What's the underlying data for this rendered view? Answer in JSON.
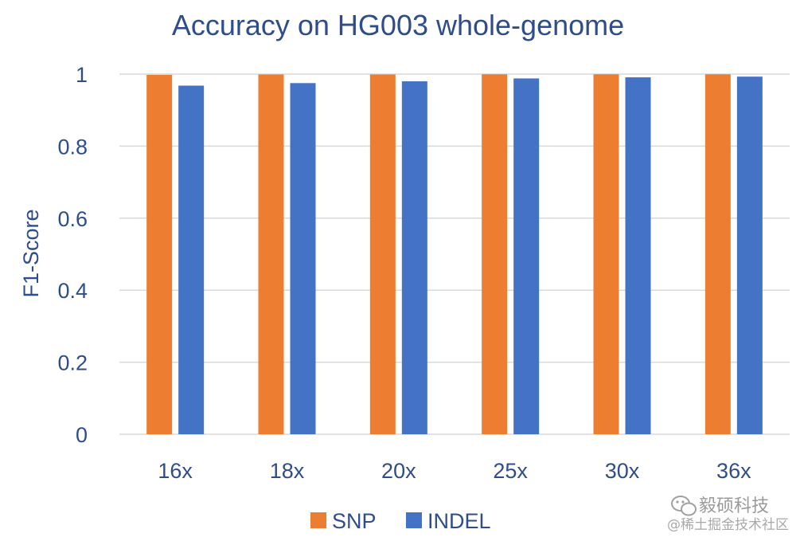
{
  "chart_data": {
    "type": "bar",
    "title": "Accuracy on HG003 whole-genome",
    "xlabel": "",
    "ylabel": "F1-Score",
    "ylim": [
      0,
      1
    ],
    "yticks": [
      0,
      0.2,
      0.4,
      0.6,
      0.8,
      1
    ],
    "ytick_labels": [
      "0",
      "0.2",
      "0.4",
      "0.6",
      "0.8",
      "1"
    ],
    "categories": [
      "16x",
      "18x",
      "20x",
      "25x",
      "30x",
      "36x"
    ],
    "series": [
      {
        "name": "SNP",
        "color": "#ed7d31",
        "values": [
          0.998,
          0.999,
          0.999,
          0.9995,
          0.9995,
          0.9995
        ]
      },
      {
        "name": "INDEL",
        "color": "#4472c4",
        "values": [
          0.968,
          0.975,
          0.98,
          0.988,
          0.991,
          0.993
        ]
      }
    ],
    "grid": true,
    "legend": "bottom"
  },
  "watermark": {
    "icon": "wechat-icon",
    "line1": "毅硕科技",
    "line2": "@稀土掘金技术社区"
  }
}
